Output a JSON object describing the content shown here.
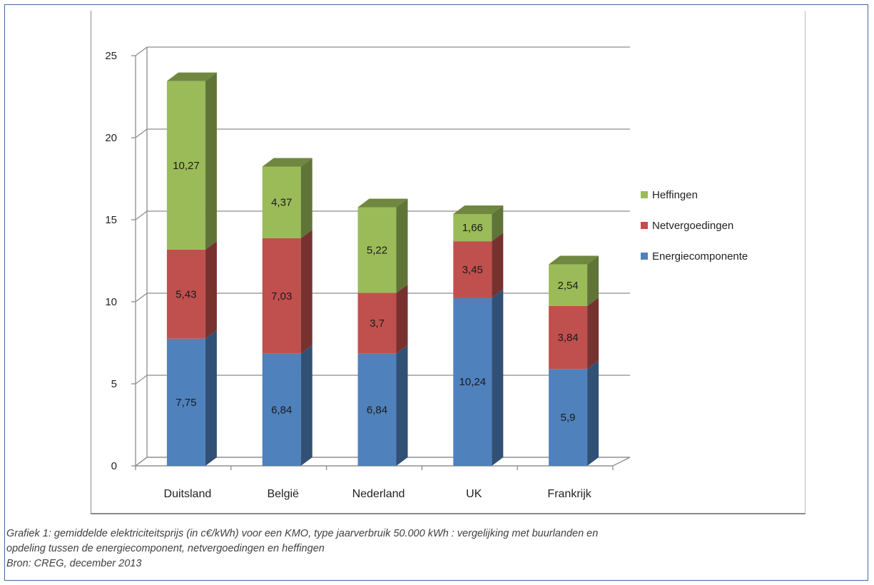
{
  "chart_data": {
    "type": "bar",
    "stacked": true,
    "three_d": true,
    "categories": [
      "Duitsland",
      "België",
      "Nederland",
      "UK",
      "Frankrijk"
    ],
    "series": [
      {
        "name": "Energiecomponente",
        "color": "#4f81bd",
        "values": [
          7.75,
          6.84,
          6.84,
          10.24,
          5.9
        ],
        "labels": [
          "7,75",
          "6,84",
          "6,84",
          "10,24",
          "5,9"
        ]
      },
      {
        "name": "Netvergoedingen",
        "color": "#c0504d",
        "values": [
          5.43,
          7.03,
          3.7,
          3.45,
          3.84
        ],
        "labels": [
          "5,43",
          "7,03",
          "3,7",
          "3,45",
          "3,84"
        ]
      },
      {
        "name": "Heffingen",
        "color": "#9bbb59",
        "values": [
          10.27,
          4.37,
          5.22,
          1.66,
          2.54
        ],
        "labels": [
          "10,27",
          "4,37",
          "5,22",
          "1,66",
          "2,54"
        ]
      }
    ],
    "ylim": [
      0,
      25
    ],
    "yticks": [
      "0",
      "5",
      "10",
      "15",
      "20",
      "25"
    ],
    "grid": true,
    "legend_position": "right",
    "legend_order": [
      "Heffingen",
      "Netvergoedingen",
      "Energiecomponente"
    ]
  },
  "caption": {
    "line1": "Grafiek 1: gemiddelde elektriciteitsprijs (in c€/kWh) voor een KMO, type jaarverbruik 50.000 kWh : vergelijking met buurlanden en",
    "line2": "opdeling tussen de energiecomponent, netvergoedingen en heffingen",
    "line3": "Bron: CREG, december 2013"
  }
}
